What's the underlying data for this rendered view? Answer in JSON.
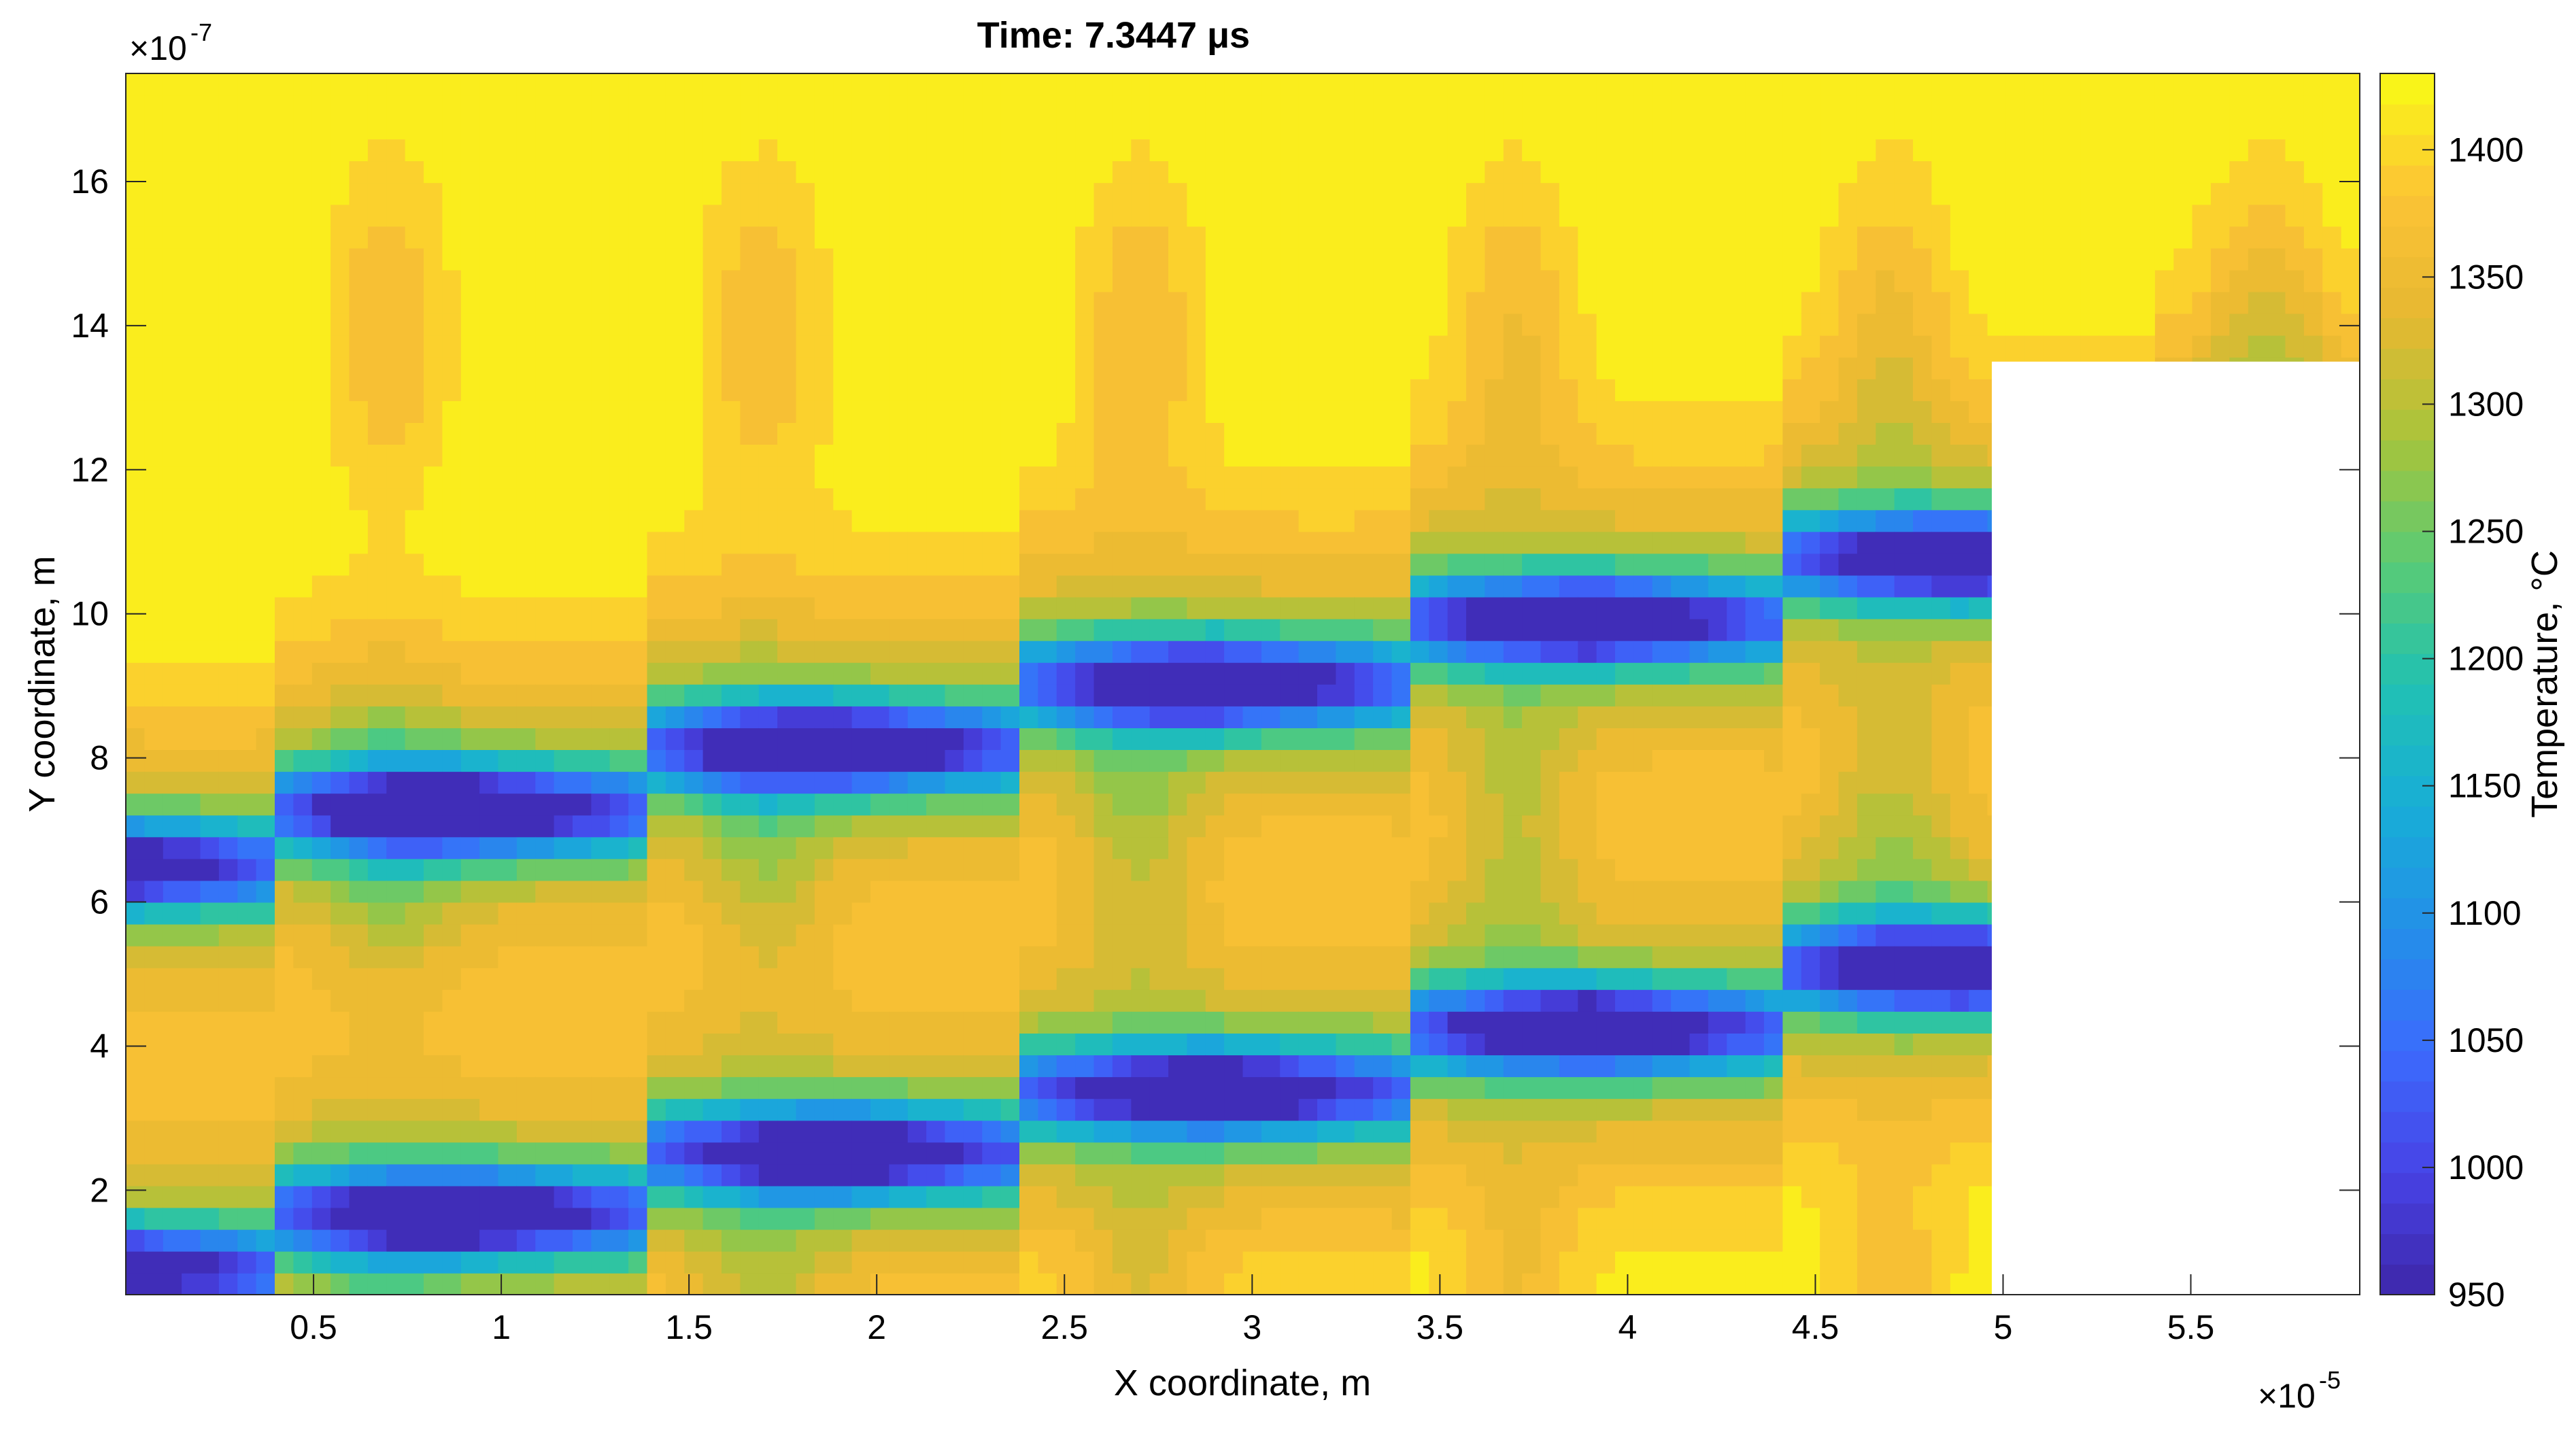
{
  "chart_data": {
    "type": "heatmap",
    "subtype": "filled-contour",
    "title_prefix": "Time:  7.3447",
    "title_unit": "μs",
    "xlabel": "X coordinate, m",
    "ylabel": "Y coordinate, m",
    "x_exponent_label": "×10",
    "x_exponent": "-5",
    "y_exponent_label": "×10",
    "y_exponent": "-7",
    "xlim": [
      0.0,
      5.95
    ],
    "ylim": [
      0.55,
      17.5
    ],
    "x_ticks": [
      0.5,
      1,
      1.5,
      2,
      2.5,
      3,
      3.5,
      4,
      4.5,
      5,
      5.5
    ],
    "x_tick_labels": [
      "0.5",
      "1",
      "1.5",
      "2",
      "2.5",
      "3",
      "3.5",
      "4",
      "4.5",
      "5",
      "5.5"
    ],
    "y_ticks": [
      2,
      4,
      6,
      8,
      10,
      12,
      14,
      16
    ],
    "y_tick_labels": [
      "2",
      "4",
      "6",
      "8",
      "10",
      "12",
      "14",
      "16"
    ],
    "colorbar": {
      "label": "Temperature, °C",
      "range": [
        950,
        1430
      ],
      "ticks": [
        950,
        1000,
        1050,
        1100,
        1150,
        1200,
        1250,
        1300,
        1350,
        1400
      ],
      "tick_labels": [
        "950",
        "1000",
        "1050",
        "1100",
        "1150",
        "1200",
        "1250",
        "1300",
        "1350",
        "1400"
      ],
      "colormap": "parula"
    },
    "field": {
      "background_temp": 1430,
      "melt_pools": [
        {
          "start": [
            0.0,
            6.5
          ],
          "end": [
            5.95,
            11.7
          ],
          "min_temp": 955,
          "core_width": 0.45
        },
        {
          "start": [
            0.0,
            0.9
          ],
          "end": [
            5.95,
            6.0
          ],
          "min_temp": 955,
          "core_width": 0.45
        }
      ],
      "hot_bands_y": [
        0.8,
        4.1,
        6.9,
        9.7,
        12.7
      ],
      "track_spacing_x": 1.0,
      "blank_region": {
        "x": [
          4.97,
          5.95
        ],
        "y": [
          0.55,
          13.5
        ]
      }
    },
    "grid": false,
    "grid_resolution": [
      120,
      56
    ]
  }
}
